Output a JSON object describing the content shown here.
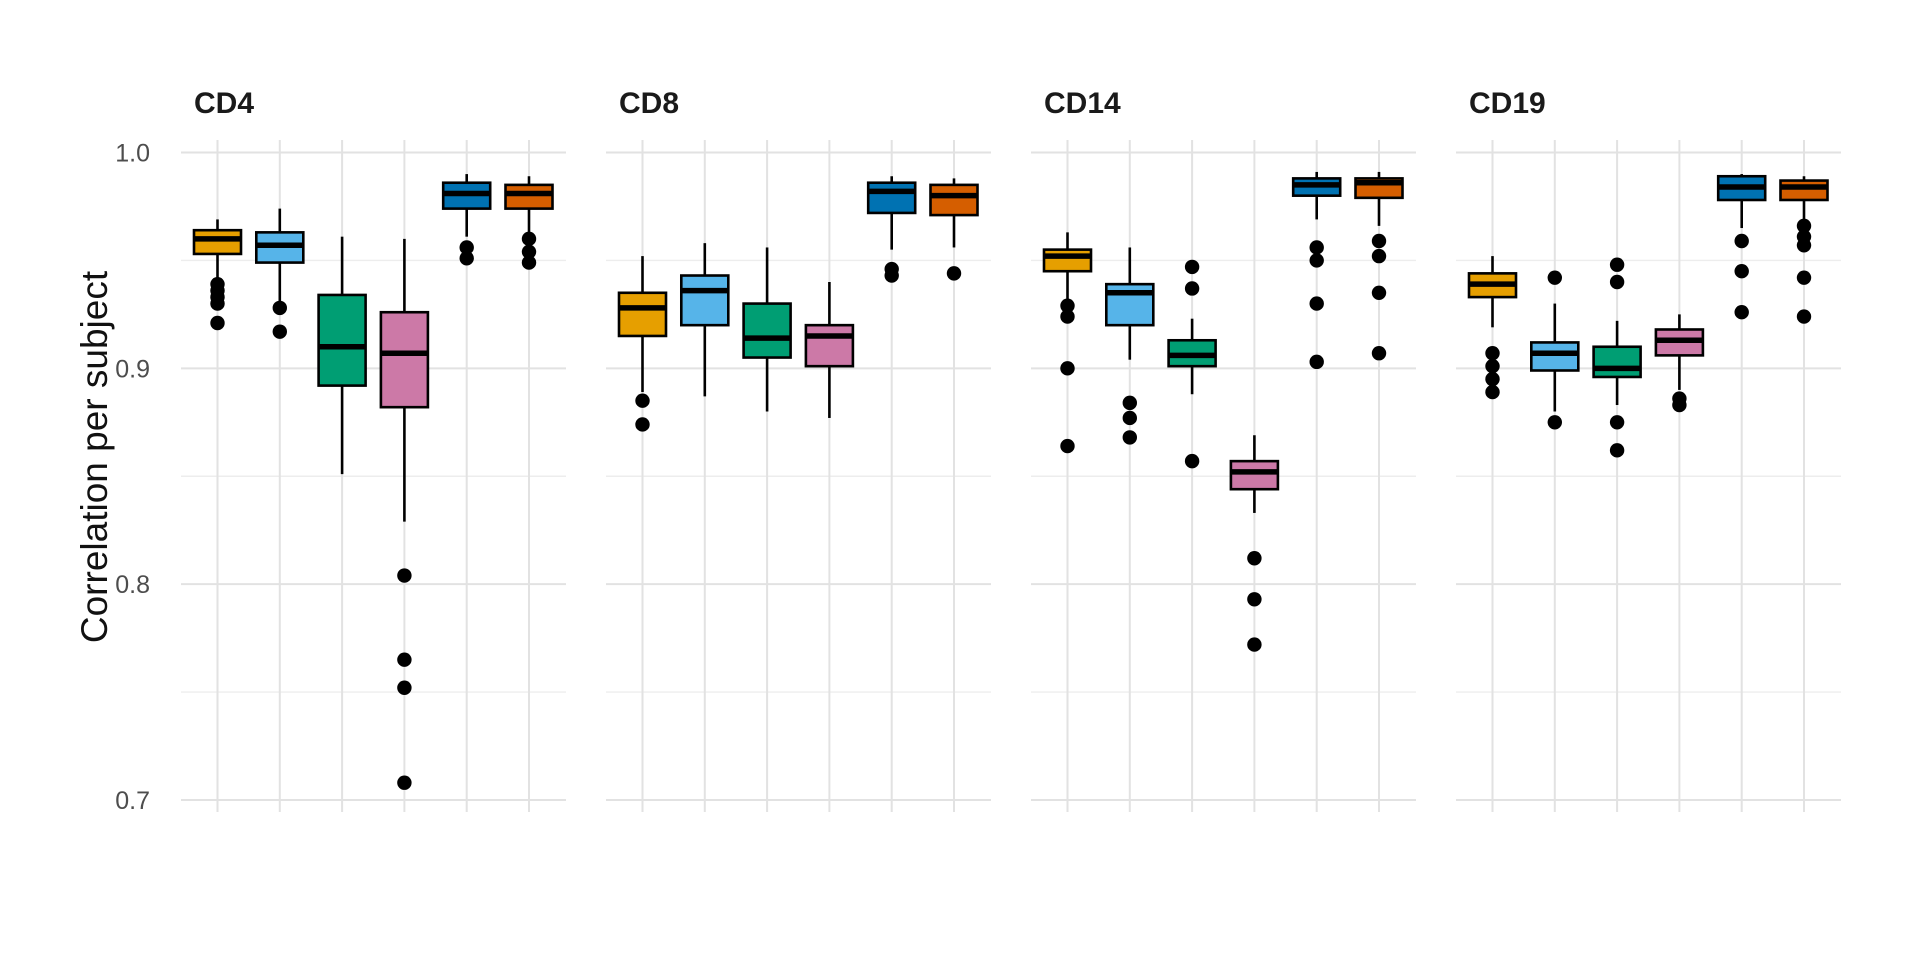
{
  "figure": {
    "background": "#ffffff",
    "text_color_title": "#1a1a1a",
    "text_color_ticks": "#4d4d4d"
  },
  "chart_data": {
    "type": "boxplot",
    "title": "",
    "xlabel": "",
    "ylabel": "Correlation per subject",
    "ylim": [
      0.695,
      1.005
    ],
    "y_ticks": [
      {
        "label": "1.0",
        "value": 1.0
      },
      {
        "label": "0.9",
        "value": 0.9
      },
      {
        "label": "0.8",
        "value": 0.8
      },
      {
        "label": "0.7",
        "value": 0.7
      }
    ],
    "y_major_gridlines": [
      0.7,
      0.8,
      0.9,
      1.0
    ],
    "y_minor_gridlines": [
      0.75,
      0.85,
      0.95
    ],
    "grid": "on",
    "legend_position": "none",
    "x_axis_labels": "none",
    "palette": [
      "#E69F00",
      "#56B4E9",
      "#009E73",
      "#CC79A7",
      "#0072B2",
      "#D55E00"
    ],
    "facets": [
      {
        "title": "CD4",
        "boxes": [
          {
            "color": "#E69F00",
            "whisker_low": 0.941,
            "q1": 0.953,
            "median": 0.96,
            "q3": 0.964,
            "whisker_high": 0.969,
            "outliers": [
              0.939,
              0.936,
              0.933,
              0.93,
              0.921
            ]
          },
          {
            "color": "#56B4E9",
            "whisker_low": 0.93,
            "q1": 0.949,
            "median": 0.957,
            "q3": 0.963,
            "whisker_high": 0.974,
            "outliers": [
              0.928,
              0.917
            ]
          },
          {
            "color": "#009E73",
            "whisker_low": 0.851,
            "q1": 0.892,
            "median": 0.91,
            "q3": 0.934,
            "whisker_high": 0.961,
            "outliers": []
          },
          {
            "color": "#CC79A7",
            "whisker_low": 0.829,
            "q1": 0.882,
            "median": 0.907,
            "q3": 0.926,
            "whisker_high": 0.96,
            "outliers": [
              0.804,
              0.765,
              0.752,
              0.708
            ]
          },
          {
            "color": "#0072B2",
            "whisker_low": 0.961,
            "q1": 0.974,
            "median": 0.981,
            "q3": 0.986,
            "whisker_high": 0.99,
            "outliers": [
              0.956,
              0.951
            ]
          },
          {
            "color": "#D55E00",
            "whisker_low": 0.962,
            "q1": 0.974,
            "median": 0.981,
            "q3": 0.985,
            "whisker_high": 0.989,
            "outliers": [
              0.96,
              0.954,
              0.949
            ]
          }
        ]
      },
      {
        "title": "CD8",
        "boxes": [
          {
            "color": "#E69F00",
            "whisker_low": 0.889,
            "q1": 0.915,
            "median": 0.928,
            "q3": 0.935,
            "whisker_high": 0.952,
            "outliers": [
              0.885,
              0.874
            ]
          },
          {
            "color": "#56B4E9",
            "whisker_low": 0.887,
            "q1": 0.92,
            "median": 0.936,
            "q3": 0.943,
            "whisker_high": 0.958,
            "outliers": []
          },
          {
            "color": "#009E73",
            "whisker_low": 0.88,
            "q1": 0.905,
            "median": 0.914,
            "q3": 0.93,
            "whisker_high": 0.956,
            "outliers": []
          },
          {
            "color": "#CC79A7",
            "whisker_low": 0.877,
            "q1": 0.901,
            "median": 0.915,
            "q3": 0.92,
            "whisker_high": 0.94,
            "outliers": []
          },
          {
            "color": "#0072B2",
            "whisker_low": 0.955,
            "q1": 0.972,
            "median": 0.982,
            "q3": 0.986,
            "whisker_high": 0.989,
            "outliers": [
              0.946,
              0.943
            ]
          },
          {
            "color": "#D55E00",
            "whisker_low": 0.956,
            "q1": 0.971,
            "median": 0.98,
            "q3": 0.985,
            "whisker_high": 0.988,
            "outliers": [
              0.944
            ]
          }
        ]
      },
      {
        "title": "CD14",
        "boxes": [
          {
            "color": "#E69F00",
            "whisker_low": 0.931,
            "q1": 0.945,
            "median": 0.952,
            "q3": 0.955,
            "whisker_high": 0.963,
            "outliers": [
              0.929,
              0.924,
              0.9,
              0.864
            ]
          },
          {
            "color": "#56B4E9",
            "whisker_low": 0.904,
            "q1": 0.92,
            "median": 0.935,
            "q3": 0.939,
            "whisker_high": 0.956,
            "outliers": [
              0.884,
              0.877,
              0.868
            ]
          },
          {
            "color": "#009E73",
            "whisker_low": 0.888,
            "q1": 0.901,
            "median": 0.906,
            "q3": 0.913,
            "whisker_high": 0.923,
            "outliers": [
              0.947,
              0.937,
              0.857
            ]
          },
          {
            "color": "#CC79A7",
            "whisker_low": 0.833,
            "q1": 0.844,
            "median": 0.852,
            "q3": 0.857,
            "whisker_high": 0.869,
            "outliers": [
              0.812,
              0.793,
              0.772
            ]
          },
          {
            "color": "#0072B2",
            "whisker_low": 0.969,
            "q1": 0.98,
            "median": 0.985,
            "q3": 0.988,
            "whisker_high": 0.991,
            "outliers": [
              0.956,
              0.95,
              0.93,
              0.903
            ]
          },
          {
            "color": "#D55E00",
            "whisker_low": 0.966,
            "q1": 0.979,
            "median": 0.986,
            "q3": 0.988,
            "whisker_high": 0.991,
            "outliers": [
              0.959,
              0.952,
              0.935,
              0.907
            ]
          }
        ]
      },
      {
        "title": "CD19",
        "boxes": [
          {
            "color": "#E69F00",
            "whisker_low": 0.919,
            "q1": 0.933,
            "median": 0.939,
            "q3": 0.944,
            "whisker_high": 0.952,
            "outliers": [
              0.907,
              0.901,
              0.895,
              0.889
            ]
          },
          {
            "color": "#56B4E9",
            "whisker_low": 0.88,
            "q1": 0.899,
            "median": 0.907,
            "q3": 0.912,
            "whisker_high": 0.93,
            "outliers": [
              0.942,
              0.875
            ]
          },
          {
            "color": "#009E73",
            "whisker_low": 0.883,
            "q1": 0.896,
            "median": 0.9,
            "q3": 0.91,
            "whisker_high": 0.922,
            "outliers": [
              0.948,
              0.94,
              0.875,
              0.862
            ]
          },
          {
            "color": "#CC79A7",
            "whisker_low": 0.89,
            "q1": 0.906,
            "median": 0.913,
            "q3": 0.918,
            "whisker_high": 0.925,
            "outliers": [
              0.886,
              0.883
            ]
          },
          {
            "color": "#0072B2",
            "whisker_low": 0.965,
            "q1": 0.978,
            "median": 0.984,
            "q3": 0.989,
            "whisker_high": 0.99,
            "outliers": [
              0.959,
              0.945,
              0.926
            ]
          },
          {
            "color": "#D55E00",
            "whisker_low": 0.969,
            "q1": 0.978,
            "median": 0.984,
            "q3": 0.987,
            "whisker_high": 0.989,
            "outliers": [
              0.966,
              0.961,
              0.957,
              0.942,
              0.924
            ]
          }
        ]
      }
    ]
  }
}
